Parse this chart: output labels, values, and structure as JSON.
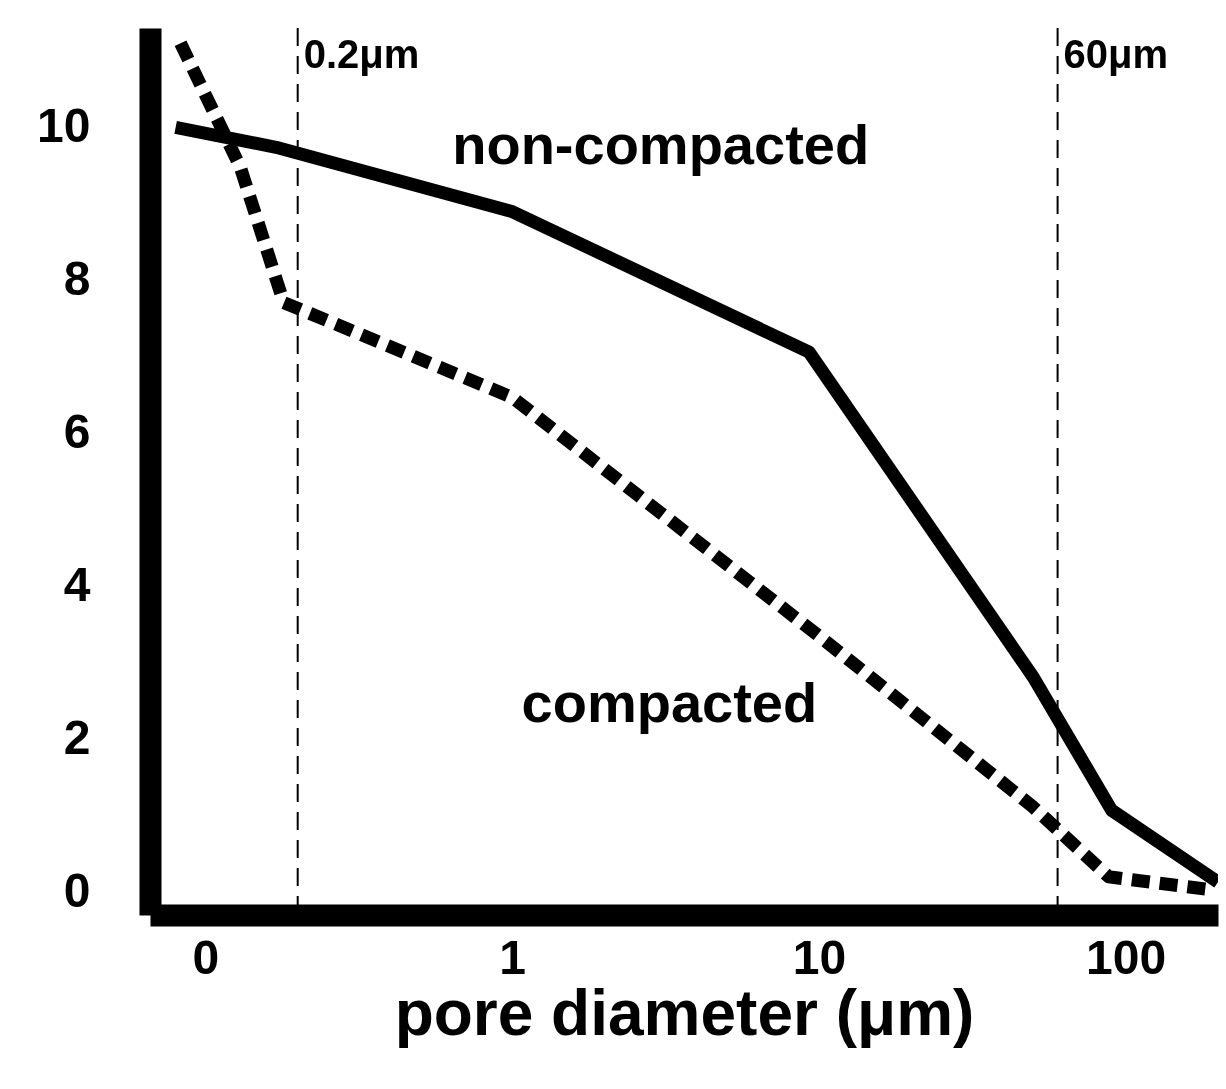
{
  "chart_data": {
    "type": "line",
    "xlabel": "pore  diameter (μm)",
    "log": "x",
    "xlim": [
      0.066,
      200
    ],
    "xticks": [
      {
        "value": 0.1,
        "label": "0"
      },
      1,
      10,
      100
    ],
    "ylim": [
      -0.3,
      11.3
    ],
    "yticks": [
      0,
      2,
      4,
      6,
      8,
      10
    ],
    "grid": false,
    "legend": false,
    "marker": "none",
    "series": [
      {
        "name": "non-compacted",
        "color": "#000000",
        "line_style": "solid",
        "x": [
          0.08,
          0.17,
          1.0,
          9.3,
          50,
          90,
          200
        ],
        "values": [
          10.0,
          9.74,
          8.9,
          7.06,
          2.81,
          1.07,
          0.13
        ]
      },
      {
        "name": "compacted",
        "color": "#000000",
        "line_style": "dashed",
        "x": [
          0.083,
          0.13,
          0.18,
          1.0,
          10.6,
          50,
          88,
          190
        ],
        "values": [
          11.1,
          9.48,
          7.71,
          6.47,
          3.27,
          1.11,
          0.2,
          0.03
        ]
      }
    ],
    "ref_lines": [
      {
        "axis": "x",
        "value": 0.2,
        "label": "0.2μm",
        "line_style": "dashed"
      },
      {
        "axis": "x",
        "value": 60,
        "label": "60μm",
        "line_style": "dashed"
      }
    ]
  }
}
